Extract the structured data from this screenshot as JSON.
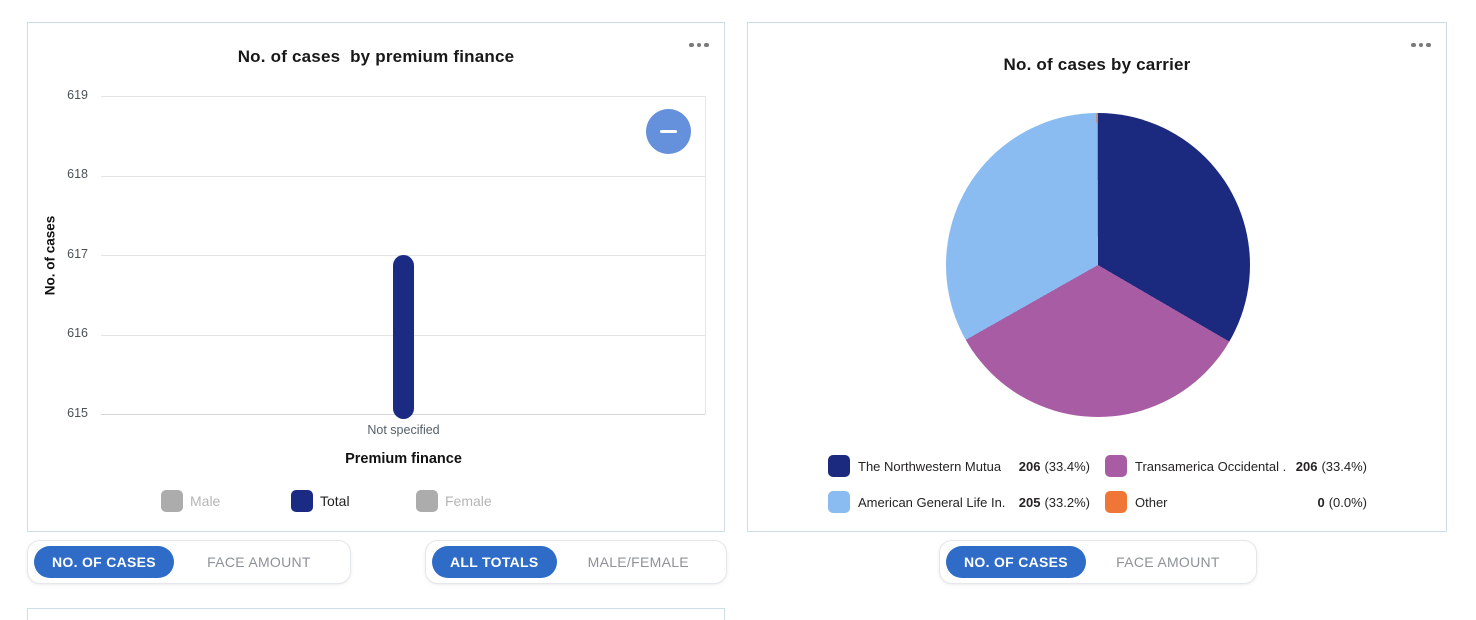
{
  "left_panel": {
    "title": "No. of cases  by premium finance",
    "menu_icon": "ellipsis-icon",
    "zoom_out_icon": "minus-icon",
    "legend": [
      {
        "label": "Male",
        "color": "#ACACAC",
        "active": false
      },
      {
        "label": "Total",
        "color": "#1B2B84",
        "active": true
      },
      {
        "label": "Female",
        "color": "#ACACAC",
        "active": false
      }
    ],
    "toggles": {
      "measure": {
        "options": [
          "NO. OF CASES",
          "FACE AMOUNT"
        ],
        "selected": "NO. OF CASES"
      },
      "breakdown": {
        "options": [
          "ALL TOTALS",
          "MALE/FEMALE"
        ],
        "selected": "ALL TOTALS"
      }
    }
  },
  "right_panel": {
    "title": "No. of cases by carrier",
    "menu_icon": "ellipsis-icon",
    "toggles": {
      "measure": {
        "options": [
          "NO. OF CASES",
          "FACE AMOUNT"
        ],
        "selected": "NO. OF CASES"
      }
    }
  },
  "chart_data": [
    {
      "type": "bar",
      "title": "No. of cases  by premium finance",
      "xlabel": "Premium finance",
      "ylabel": "No. of cases",
      "categories": [
        "Not specified"
      ],
      "series": [
        {
          "name": "Male",
          "values": [
            null
          ],
          "color": "#ACACAC",
          "visible": false
        },
        {
          "name": "Total",
          "values": [
            617
          ],
          "color": "#1B2B84",
          "visible": true
        },
        {
          "name": "Female",
          "values": [
            null
          ],
          "color": "#ACACAC",
          "visible": false
        }
      ],
      "ylim": [
        615,
        619
      ],
      "yticks": [
        615,
        616,
        617,
        618,
        619
      ],
      "yticks_display": [
        "619",
        "618",
        "617",
        "616",
        "615"
      ],
      "grid": true,
      "legend_position": "bottom"
    },
    {
      "type": "pie",
      "title": "No. of cases by carrier",
      "slices": [
        {
          "label": "The Northwestern Mutua",
          "value": 206,
          "pct": "(33.4%)",
          "color": "#1B2A7E"
        },
        {
          "label": "Transamerica Occidental .",
          "value": 206,
          "pct": "(33.4%)",
          "color": "#A85CA3"
        },
        {
          "label": "American General Life In.",
          "value": 205,
          "pct": "(33.2%)",
          "color": "#8ABCF2"
        },
        {
          "label": "Other",
          "value": 0,
          "pct": "(0.0%)",
          "color": "#EF7636"
        }
      ],
      "legend_position": "bottom"
    }
  ],
  "colors": {
    "accent_blue": "#2F6CC8",
    "panel_border": "#CDDEE9",
    "bar_navy": "#1B2B84",
    "zoom_button_blue": "#6590DB",
    "gridline": "#E4E4E4"
  }
}
